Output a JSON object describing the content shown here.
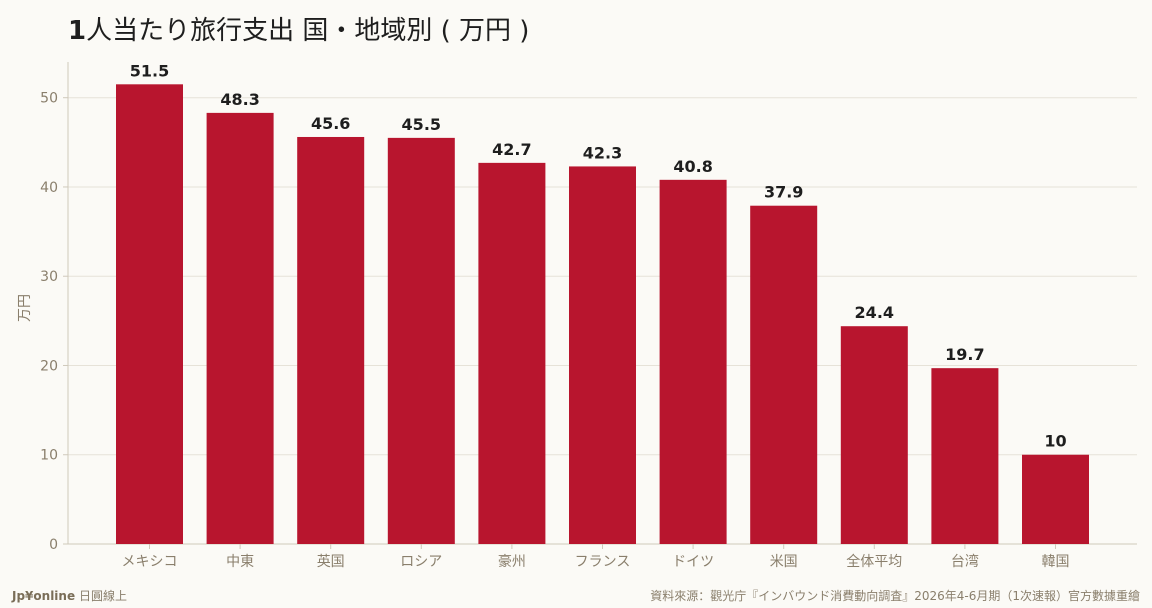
{
  "header": {
    "title_number": "1",
    "title_text": "人当たり旅行支出 国・地域別 ( 万円 )"
  },
  "footer": {
    "brand": "Jp¥online",
    "brand_suffix": "日圓線上",
    "source": "資料來源：觀光庁『インバウンド消費動向調査』2026年4-6月期（1次速報）官方數據重繪"
  },
  "colors": {
    "bar": "#b8152e",
    "grid": "#e6e2d8",
    "axis": "#cfc9bb",
    "tick_text": "#8a7f6c",
    "label_text": "#1e1e1e"
  },
  "chart_data": {
    "type": "bar",
    "title": "1人当たり旅行支出 国・地域別 ( 万円 )",
    "xlabel": "",
    "ylabel": "万円",
    "ylim": [
      0,
      54
    ],
    "yticks": [
      0,
      10,
      20,
      30,
      40,
      50
    ],
    "grid": true,
    "categories": [
      "メキシコ",
      "中東",
      "英国",
      "ロシア",
      "豪州",
      "フランス",
      "ドイツ",
      "米国",
      "全体平均",
      "台湾",
      "韓国"
    ],
    "values": [
      51.5,
      48.3,
      45.6,
      45.5,
      42.7,
      42.3,
      40.8,
      37.9,
      24.4,
      19.7,
      10
    ],
    "value_labels": [
      "51.5",
      "48.3",
      "45.6",
      "45.5",
      "42.7",
      "42.3",
      "40.8",
      "37.9",
      "24.4",
      "19.7",
      "10"
    ]
  }
}
